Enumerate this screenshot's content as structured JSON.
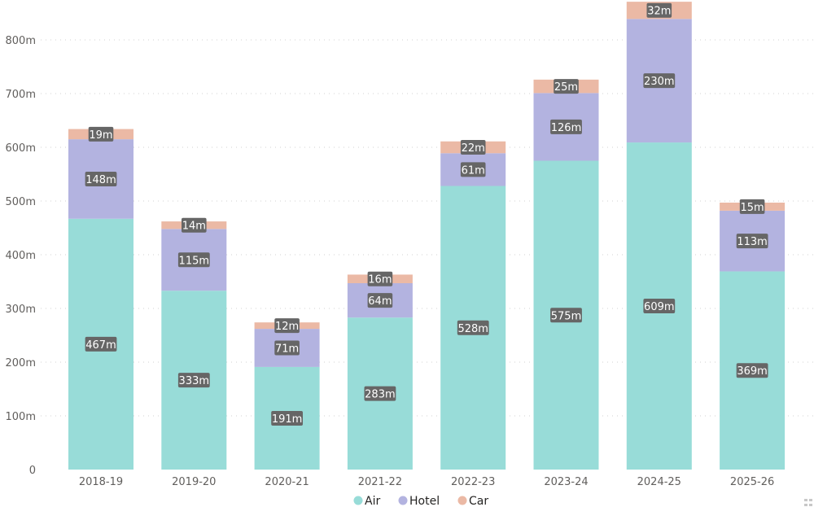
{
  "chart_data": {
    "type": "bar",
    "stacked": true,
    "categories": [
      "2018-19",
      "2019-20",
      "2020-21",
      "2021-22",
      "2022-23",
      "2023-24",
      "2024-25",
      "2025-26"
    ],
    "series": [
      {
        "name": "Air",
        "color": "#98dcd8",
        "values": [
          467,
          333,
          191,
          283,
          528,
          575,
          609,
          369
        ]
      },
      {
        "name": "Hotel",
        "color": "#b3b3e0",
        "values": [
          148,
          115,
          71,
          64,
          61,
          126,
          230,
          113
        ]
      },
      {
        "name": "Car",
        "color": "#ebb9a5",
        "values": [
          19,
          14,
          12,
          16,
          22,
          25,
          32,
          15
        ]
      }
    ],
    "data_labels": {
      "Air": [
        "467m",
        "333m",
        "191m",
        "283m",
        "528m",
        "575m",
        "609m",
        "369m"
      ],
      "Hotel": [
        "148m",
        "115m",
        "71m",
        "64m",
        "61m",
        "126m",
        "230m",
        "113m"
      ],
      "Car": [
        "19m",
        "14m",
        "12m",
        "16m",
        "22m",
        "25m",
        "32m",
        "15m"
      ]
    },
    "y_ticks": [
      0,
      100,
      200,
      300,
      400,
      500,
      600,
      700,
      800
    ],
    "y_tick_labels": [
      "0",
      "100m",
      "200m",
      "300m",
      "400m",
      "500m",
      "600m",
      "700m",
      "800m"
    ],
    "ylim": [
      0,
      880
    ],
    "grid": true,
    "legend_placement": "bottom-center",
    "label_box_color": "#666666"
  }
}
